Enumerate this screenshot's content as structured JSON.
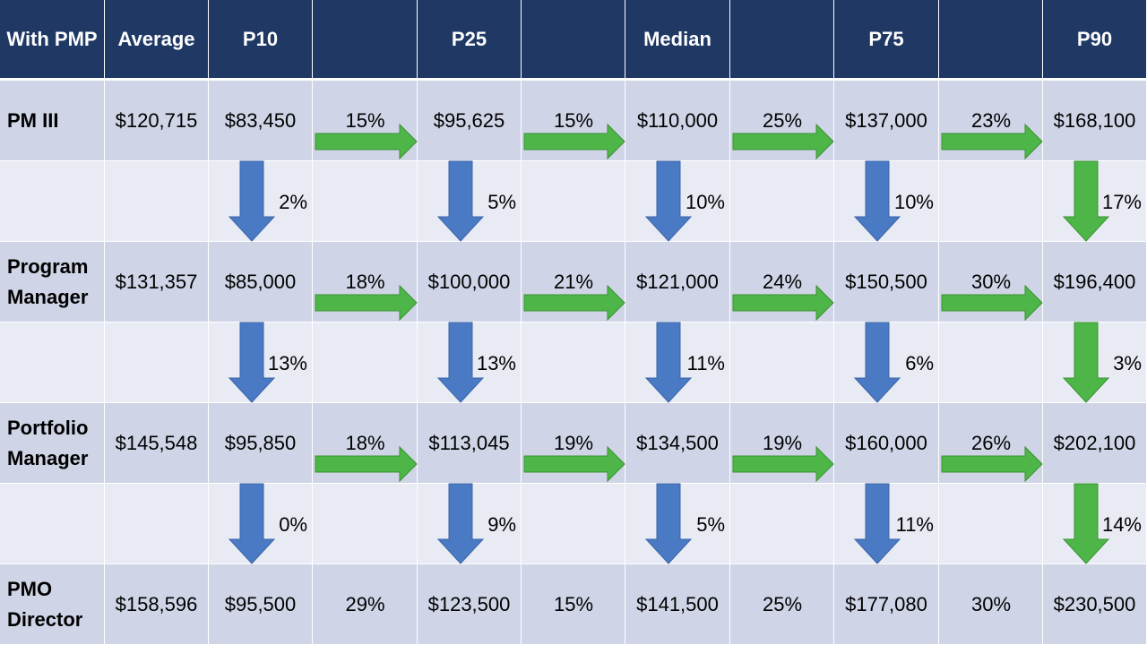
{
  "colors": {
    "header_bg": "#1f3864",
    "row_shaded": "#cfd5e7",
    "row_light": "#e8ebf4",
    "arrow_right": "#4eb648",
    "arrow_down_blue": "#4a7ac4",
    "arrow_down_green": "#4eb648"
  },
  "header": [
    "With PMP",
    "Average",
    "P10",
    "",
    "P25",
    "",
    "Median",
    "",
    "P75",
    "",
    "P90"
  ],
  "rows": [
    {
      "role": "PM III",
      "average": "$120,715",
      "values": [
        "$83,450",
        "$95,625",
        "$110,000",
        "$137,000",
        "$168,100"
      ],
      "step_pcts": [
        "15%",
        "15%",
        "25%",
        "23%"
      ],
      "step_arrows": true
    },
    {
      "role": "Program Manager",
      "average": "$131,357",
      "values": [
        "$85,000",
        "$100,000",
        "$121,000",
        "$150,500",
        "$196,400"
      ],
      "step_pcts": [
        "18%",
        "21%",
        "24%",
        "30%"
      ],
      "step_arrows": true
    },
    {
      "role": "Portfolio Manager",
      "average": "$145,548",
      "values": [
        "$95,850",
        "$113,045",
        "$134,500",
        "$160,000",
        "$202,100"
      ],
      "step_pcts": [
        "18%",
        "19%",
        "19%",
        "26%"
      ],
      "step_arrows": true
    },
    {
      "role": "PMO Director",
      "average": "$158,596",
      "values": [
        "$95,500",
        "$123,500",
        "$141,500",
        "$177,080",
        "$230,500"
      ],
      "step_pcts": [
        "29%",
        "15%",
        "25%",
        "30%"
      ],
      "step_arrows": false
    }
  ],
  "between_rows": [
    {
      "pcts": [
        "2%",
        "5%",
        "10%",
        "10%",
        "17%"
      ],
      "arrow_colors": [
        "blue",
        "blue",
        "blue",
        "blue",
        "green"
      ]
    },
    {
      "pcts": [
        "13%",
        "13%",
        "11%",
        "6%",
        "3%"
      ],
      "arrow_colors": [
        "blue",
        "blue",
        "blue",
        "blue",
        "green"
      ]
    },
    {
      "pcts": [
        "0%",
        "9%",
        "5%",
        "11%",
        "14%"
      ],
      "arrow_colors": [
        "blue",
        "blue",
        "blue",
        "blue",
        "green"
      ]
    }
  ]
}
